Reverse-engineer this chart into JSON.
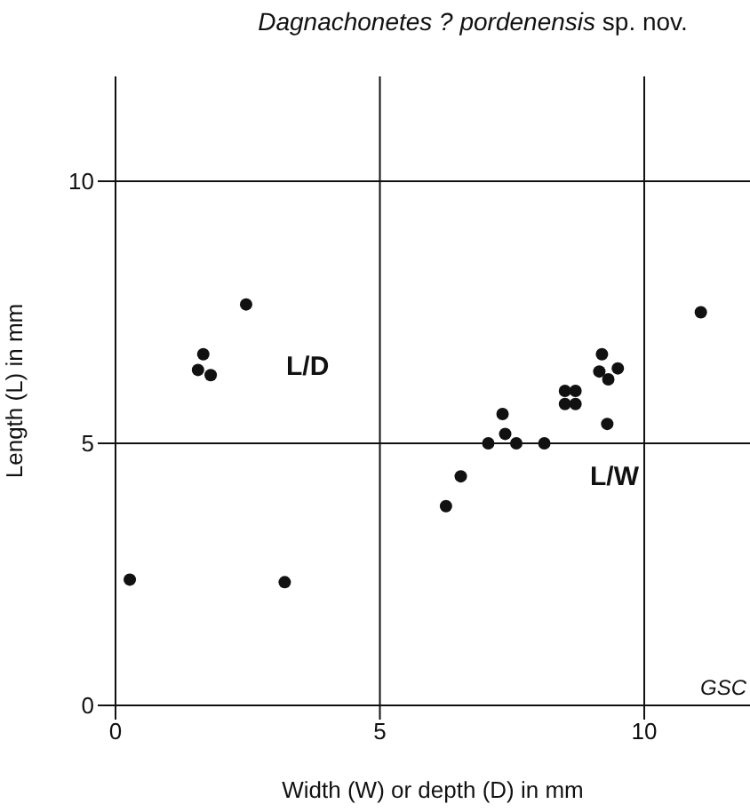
{
  "chart_data": {
    "type": "scatter",
    "title": "Dagnachonetes ? pordenensis sp. nov.",
    "xlabel": "Width (W) or depth (D) in mm",
    "ylabel": "Length (L) in mm",
    "series": [
      {
        "name": "L/D",
        "color": "#111111",
        "x": [
          0.27,
          3.2,
          2.47,
          1.66,
          1.56,
          1.8
        ],
        "values": [
          2.4,
          2.35,
          7.65,
          6.7,
          6.4,
          6.3
        ]
      },
      {
        "name": "L/W",
        "color": "#111111",
        "x": [
          11.07,
          6.25,
          6.53,
          7.05,
          7.32,
          7.37,
          7.58,
          8.11,
          8.5,
          8.7,
          8.5,
          8.7,
          9.2,
          9.15,
          9.32,
          9.5,
          9.3
        ],
        "values": [
          7.5,
          3.8,
          4.37,
          5.0,
          5.56,
          5.18,
          5.0,
          5.0,
          6.0,
          6.0,
          5.75,
          5.75,
          6.7,
          6.37,
          6.22,
          6.43,
          5.37
        ]
      }
    ],
    "marker": "circle",
    "xlim": [
      0,
      12
    ],
    "ylim": [
      0,
      12
    ],
    "xticks": [
      0,
      5,
      10
    ],
    "yticks": [
      0,
      5,
      10
    ],
    "grid": true,
    "annotations": [
      "GSC"
    ]
  }
}
